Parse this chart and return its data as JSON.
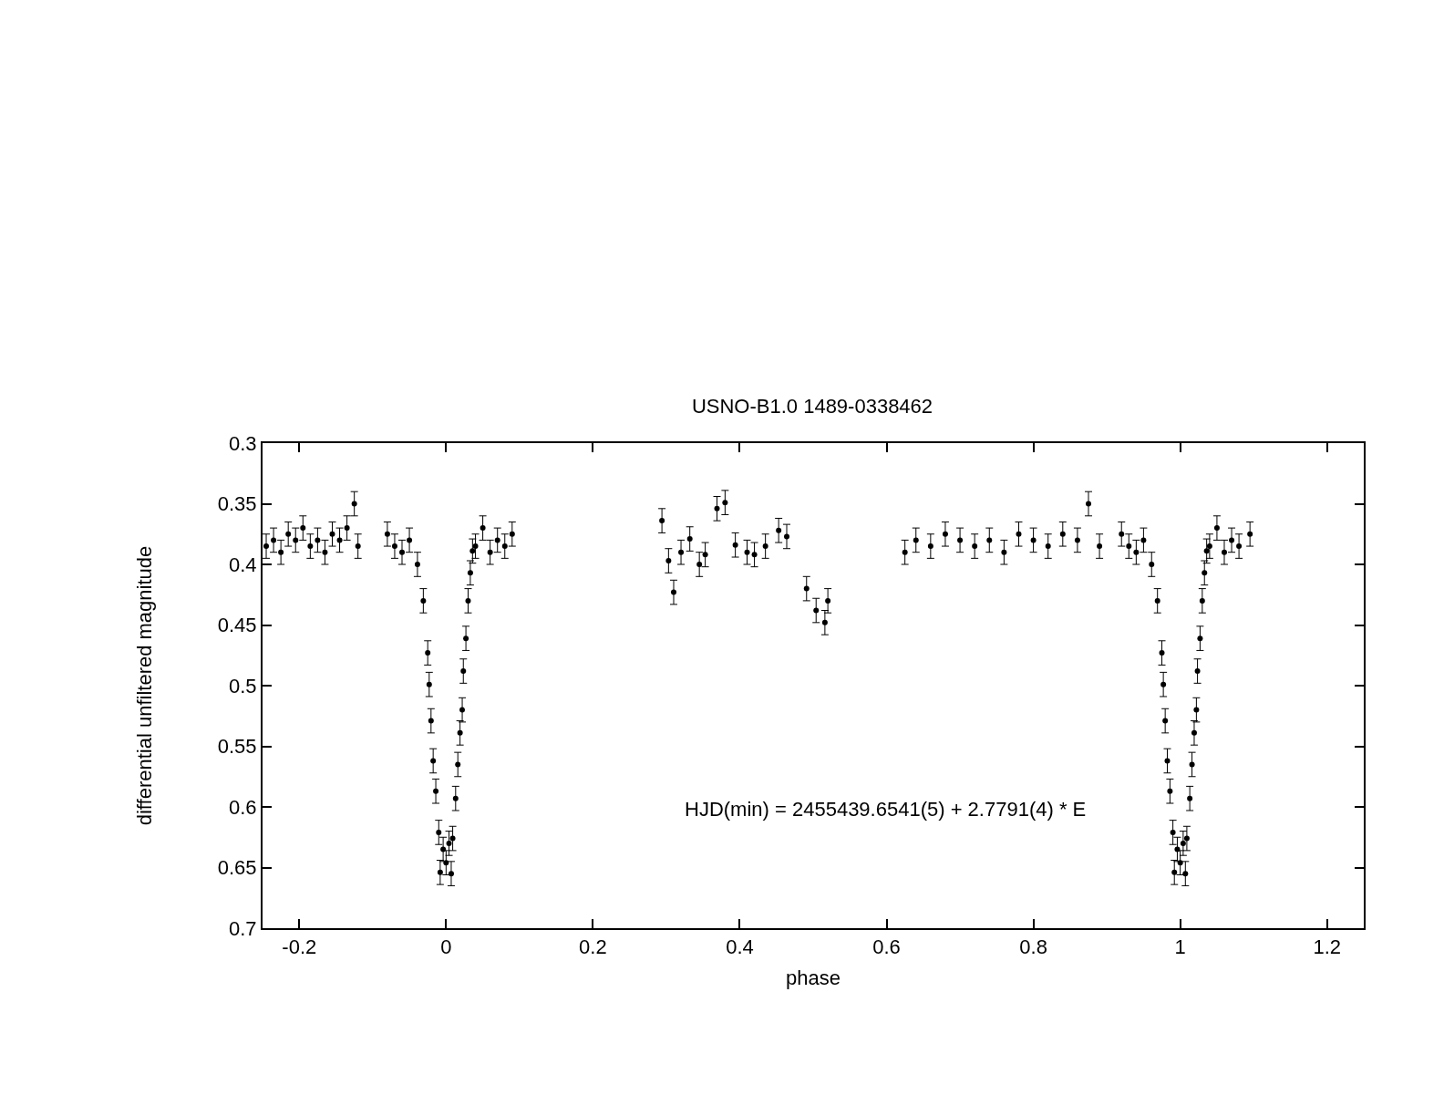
{
  "chart_data": {
    "type": "scatter",
    "title": "USNO-B1.0 1489-0338462",
    "xlabel": "phase",
    "ylabel": "differential unfiltered magnitude",
    "annotations": [
      "HJD(min) = 2455439.6541(5) + 2.7791(4) * E"
    ],
    "xlim": [
      -0.25,
      1.25
    ],
    "xticks": [
      -0.2,
      0,
      0.2,
      0.4,
      0.6,
      0.8,
      1,
      1.2
    ],
    "ylim": [
      0.7,
      0.3
    ],
    "yticks": [
      0.3,
      0.35,
      0.4,
      0.45,
      0.5,
      0.55,
      0.6,
      0.65,
      0.7
    ],
    "marker": "circle",
    "series": [
      {
        "color": "#000000",
        "x": [
          -0.245,
          -0.235,
          -0.225,
          -0.215,
          -0.205,
          -0.195,
          -0.185,
          -0.175,
          -0.165,
          -0.155,
          -0.145,
          -0.135,
          -0.125,
          -0.12,
          -0.08,
          -0.07,
          -0.06,
          -0.05,
          -0.039,
          -0.031,
          -0.025,
          -0.023,
          -0.0205,
          -0.0176,
          -0.014,
          -0.01,
          -0.008,
          -0.004,
          0,
          0.004,
          0.007,
          0.009,
          0.013,
          0.016,
          0.019,
          0.022,
          0.0235,
          0.027,
          0.03,
          0.033,
          0.036,
          0.04,
          0.05,
          0.06,
          0.07,
          0.08,
          0.09,
          0.294,
          0.303,
          0.31,
          0.32,
          0.332,
          0.345,
          0.353,
          0.369,
          0.38,
          0.394,
          0.41,
          0.42,
          0.435,
          0.453,
          0.464,
          0.491,
          0.504,
          0.516,
          0.52,
          0.625,
          0.64,
          0.66,
          0.68,
          0.7,
          0.72,
          0.74,
          0.76,
          0.78,
          0.8,
          0.82,
          0.84,
          0.86,
          0.875,
          0.89,
          0.92,
          0.93,
          0.94,
          0.95,
          0.961,
          0.969,
          0.975,
          0.977,
          0.9795,
          0.9824,
          0.986,
          0.99,
          0.992,
          0.996,
          1,
          1.004,
          1.007,
          1.009,
          1.013,
          1.016,
          1.019,
          1.022,
          1.0235,
          1.027,
          1.03,
          1.033,
          1.036,
          1.04,
          1.05,
          1.06,
          1.07,
          1.08,
          1.095
        ],
        "values": [
          0.385,
          0.38,
          0.39,
          0.375,
          0.38,
          0.37,
          0.385,
          0.38,
          0.39,
          0.375,
          0.38,
          0.37,
          0.35,
          0.385,
          0.375,
          0.385,
          0.39,
          0.38,
          0.4,
          0.43,
          0.473,
          0.499,
          0.529,
          0.562,
          0.587,
          0.621,
          0.654,
          0.635,
          0.646,
          0.63,
          0.655,
          0.626,
          0.593,
          0.565,
          0.539,
          0.52,
          0.488,
          0.461,
          0.43,
          0.407,
          0.389,
          0.385,
          0.37,
          0.39,
          0.38,
          0.385,
          0.375,
          0.364,
          0.397,
          0.423,
          0.39,
          0.379,
          0.4,
          0.392,
          0.354,
          0.349,
          0.384,
          0.39,
          0.392,
          0.385,
          0.372,
          0.377,
          0.42,
          0.438,
          0.448,
          0.43,
          0.39,
          0.38,
          0.385,
          0.375,
          0.38,
          0.385,
          0.38,
          0.39,
          0.375,
          0.38,
          0.385,
          0.375,
          0.38,
          0.35,
          0.385,
          0.375,
          0.385,
          0.39,
          0.38,
          0.4,
          0.43,
          0.473,
          0.499,
          0.529,
          0.562,
          0.587,
          0.621,
          0.654,
          0.635,
          0.646,
          0.63,
          0.655,
          0.626,
          0.593,
          0.565,
          0.539,
          0.52,
          0.488,
          0.461,
          0.43,
          0.407,
          0.389,
          0.385,
          0.37,
          0.39,
          0.38,
          0.385,
          0.375
        ],
        "errors": [
          0.01,
          0.01,
          0.01,
          0.01,
          0.01,
          0.01,
          0.01,
          0.01,
          0.01,
          0.01,
          0.01,
          0.01,
          0.01,
          0.01,
          0.01,
          0.01,
          0.01,
          0.01,
          0.01,
          0.01,
          0.01,
          0.01,
          0.01,
          0.01,
          0.01,
          0.01,
          0.01,
          0.01,
          0.01,
          0.01,
          0.01,
          0.01,
          0.01,
          0.01,
          0.01,
          0.01,
          0.01,
          0.01,
          0.01,
          0.01,
          0.01,
          0.01,
          0.01,
          0.01,
          0.01,
          0.01,
          0.01,
          0.01,
          0.01,
          0.01,
          0.01,
          0.01,
          0.01,
          0.01,
          0.01,
          0.01,
          0.01,
          0.01,
          0.01,
          0.01,
          0.01,
          0.01,
          0.01,
          0.01,
          0.01,
          0.01,
          0.01,
          0.01,
          0.01,
          0.01,
          0.01,
          0.01,
          0.01,
          0.01,
          0.01,
          0.01,
          0.01,
          0.01,
          0.01,
          0.01,
          0.01,
          0.01,
          0.01,
          0.01,
          0.01,
          0.01,
          0.01,
          0.01,
          0.01,
          0.01,
          0.01,
          0.01,
          0.01,
          0.01,
          0.01,
          0.01,
          0.01,
          0.01,
          0.01,
          0.01,
          0.01,
          0.01,
          0.01,
          0.01,
          0.01,
          0.01,
          0.01,
          0.01,
          0.01,
          0.01,
          0.01,
          0.01,
          0.01,
          0.01
        ]
      }
    ]
  }
}
